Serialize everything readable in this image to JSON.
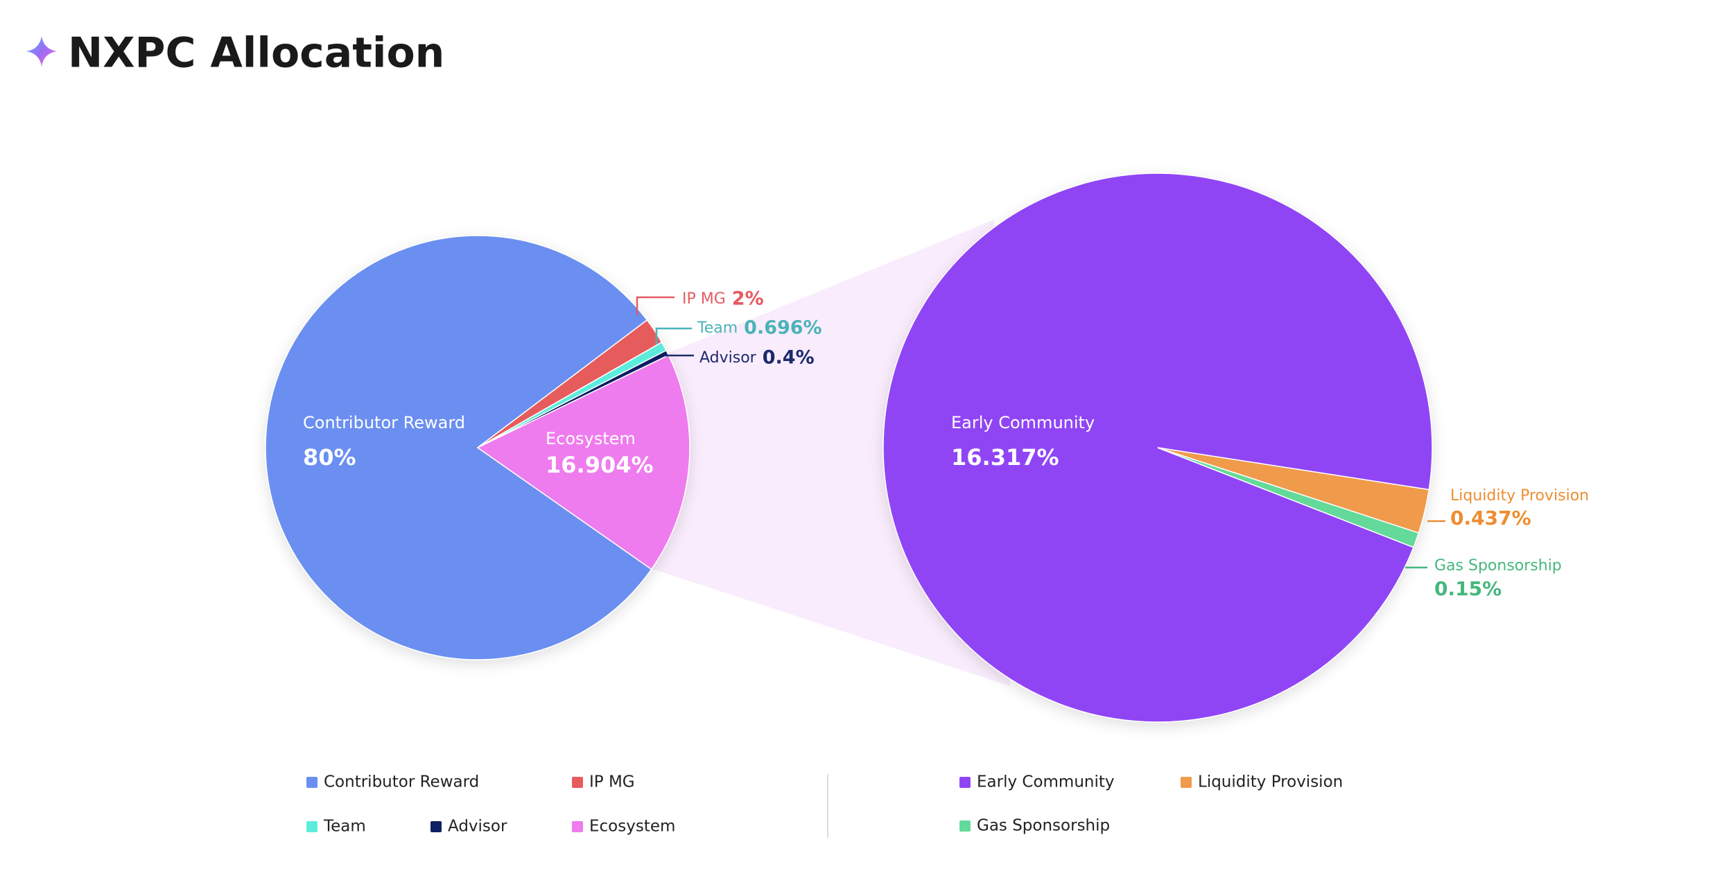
{
  "title": "NXPC Allocation",
  "chart_data": [
    {
      "type": "pie",
      "categories": [
        "Contributor Reward",
        "IP MG",
        "Team",
        "Advisor",
        "Ecosystem"
      ],
      "values": [
        80,
        2,
        0.696,
        0.4,
        16.904
      ],
      "value_labels": [
        "80%",
        "2%",
        "0.696%",
        "0.4%",
        "16.904%"
      ],
      "colors": [
        "#6a8ff0",
        "#e65b5b",
        "#5cecdc",
        "#0e1f63",
        "#ef7bef"
      ]
    },
    {
      "type": "pie",
      "categories": [
        "Early Community",
        "Liquidity Provision",
        "Gas Sponsorship"
      ],
      "values": [
        16.317,
        0.437,
        0.15
      ],
      "value_labels": [
        "16.317%",
        "0.437%",
        "0.15%"
      ],
      "colors": [
        "#9045f5",
        "#f09a4b",
        "#63d99a"
      ]
    }
  ]
}
